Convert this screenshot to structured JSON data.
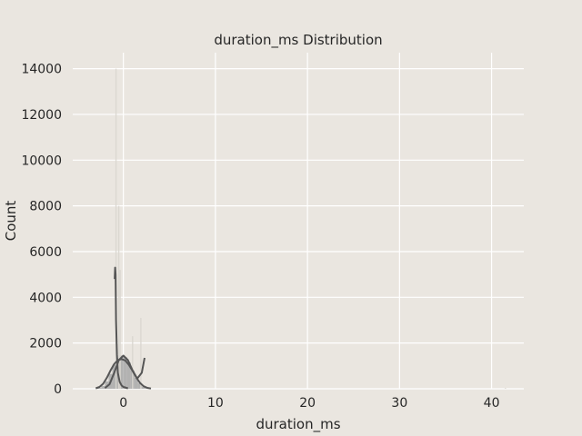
{
  "chart_data": {
    "type": "histogram",
    "title": "duration_ms Distribution",
    "xlabel": "duration_ms",
    "ylabel": "Count",
    "xlim": [
      -5.5,
      43.5
    ],
    "ylim": [
      0,
      14700
    ],
    "xticks": [
      0,
      10,
      20,
      30,
      40
    ],
    "yticks": [
      0,
      2000,
      4000,
      6000,
      8000,
      10000,
      12000,
      14000
    ],
    "grid": true,
    "colors": {
      "background": "#eae6e0",
      "grid": "#ffffff",
      "bars": "#a8a8a8",
      "kde": "#555555",
      "spike_light": "#d9d6cf"
    },
    "histogram_bins": [
      {
        "x": -2.6,
        "count": 40
      },
      {
        "x": -2.2,
        "count": 120
      },
      {
        "x": -1.8,
        "count": 320
      },
      {
        "x": -1.4,
        "count": 650
      },
      {
        "x": -1.0,
        "count": 1050
      },
      {
        "x": -0.6,
        "count": 1350
      },
      {
        "x": -0.2,
        "count": 1450
      },
      {
        "x": 0.2,
        "count": 1380
      },
      {
        "x": 0.6,
        "count": 1150
      },
      {
        "x": 1.0,
        "count": 800
      },
      {
        "x": 1.4,
        "count": 480
      },
      {
        "x": 1.8,
        "count": 240
      },
      {
        "x": 2.2,
        "count": 90
      },
      {
        "x": 2.6,
        "count": 30
      }
    ],
    "spikes": [
      {
        "x": -0.8,
        "count": 14000
      },
      {
        "x": -0.5,
        "count": 8000
      },
      {
        "x": -0.35,
        "count": 5200
      },
      {
        "x": 1.0,
        "count": 2300
      },
      {
        "x": 1.9,
        "count": 3100
      },
      {
        "x": 41.5,
        "count": 40
      }
    ],
    "kde_series": [
      {
        "x": [
          -3.0,
          -2.6,
          -2.2,
          -1.8,
          -1.4,
          -1.0,
          -0.6,
          -0.2,
          0.2,
          0.6,
          1.0,
          1.4,
          1.8,
          2.2,
          2.6,
          3.0
        ],
        "y": [
          20,
          80,
          220,
          480,
          800,
          1080,
          1250,
          1300,
          1240,
          1050,
          780,
          500,
          260,
          110,
          40,
          10
        ]
      },
      {
        "x": [
          -2.0,
          -1.5,
          -1.0,
          -0.5,
          0.0,
          0.5,
          1.0,
          1.5,
          2.0,
          2.3
        ],
        "y": [
          30,
          200,
          700,
          1250,
          1450,
          1250,
          800,
          450,
          700,
          1350
        ]
      },
      {
        "x": [
          -0.95,
          -0.9,
          -0.85,
          -0.8,
          -0.7,
          -0.6,
          -0.4,
          -0.2,
          0.0,
          0.5
        ],
        "y": [
          4800,
          5300,
          5000,
          3000,
          1500,
          700,
          300,
          150,
          80,
          20
        ]
      }
    ]
  }
}
